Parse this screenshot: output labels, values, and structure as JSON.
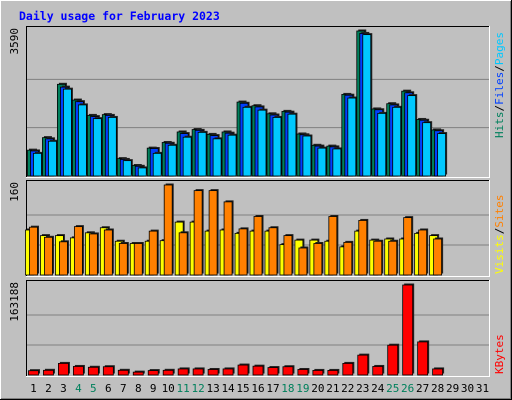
{
  "chart_data": {
    "type": "bar",
    "title": "Daily usage for February 2023",
    "colors": {
      "background": "#c0c0c0",
      "panel": "#c0c0c0",
      "title": "#0000ff",
      "hits": "#00805c",
      "files": "#0040ff",
      "pages": "#00c8ff",
      "visits": "#ffff00",
      "sites": "#ff8000",
      "kbytes": "#ff0000",
      "weekend_label": "#00805c",
      "weekday_label": "#000000",
      "gridline": "#808080"
    },
    "x_ticks": [
      "1",
      "2",
      "3",
      "4",
      "5",
      "6",
      "7",
      "8",
      "9",
      "10",
      "11",
      "12",
      "13",
      "14",
      "15",
      "16",
      "17",
      "18",
      "19",
      "20",
      "21",
      "22",
      "23",
      "24",
      "25",
      "26",
      "27",
      "28",
      "29",
      "30",
      "31"
    ],
    "weekend_days": [
      4,
      5,
      11,
      12,
      18,
      19,
      25,
      26
    ],
    "panels": [
      {
        "id": "hits-files-pages",
        "y_tick_label": "3590",
        "ymax": 3590,
        "legend": [
          "Hits",
          "/",
          "Files",
          "/",
          "Pages"
        ],
        "series": [
          {
            "name": "Hits",
            "values": [
              640,
              950,
              2270,
              1880,
              1500,
              1520,
              430,
              260,
              690,
              830,
              1090,
              1150,
              1030,
              1090,
              1830,
              1740,
              1540,
              1600,
              1040,
              760,
              740,
              2020,
              3590,
              1660,
              1790,
              2100,
              1400,
              1140,
              0,
              0,
              0
            ]
          },
          {
            "name": "Files",
            "values": [
              620,
              920,
              2200,
              1840,
              1470,
              1500,
              410,
              240,
              680,
              810,
              1050,
              1130,
              1000,
              1060,
              1800,
              1710,
              1510,
              1580,
              1020,
              740,
              720,
              2000,
              3530,
              1640,
              1760,
              2060,
              1380,
              1120,
              0,
              0,
              0
            ]
          },
          {
            "name": "Pages",
            "values": [
              560,
              860,
              2150,
              1760,
              1420,
              1450,
              380,
              200,
              560,
              760,
              960,
              1080,
              920,
              1010,
              1700,
              1630,
              1450,
              1530,
              990,
              690,
              670,
              1930,
              3500,
              1550,
              1700,
              1990,
              1320,
              1050,
              0,
              0,
              0
            ]
          }
        ]
      },
      {
        "id": "visits-sites",
        "y_tick_label": "160",
        "ymax": 160,
        "legend": [
          "Visits",
          "/",
          "Sites"
        ],
        "series": [
          {
            "name": "Visits",
            "values": [
              80,
              70,
              70,
              66,
              75,
              84,
              60,
              56,
              60,
              61,
              94,
              94,
              78,
              80,
              74,
              78,
              78,
              54,
              62,
              62,
              60,
              50,
              78,
              62,
              64,
              64,
              74,
              70,
              0,
              0,
              0
            ]
          },
          {
            "name": "Sites",
            "values": [
              85,
              67,
              59,
              86,
              73,
              80,
              56,
              56,
              78,
              160,
              75,
              150,
              150,
              130,
              82,
              104,
              84,
              70,
              48,
              56,
              104,
              58,
              97,
              60,
              60,
              102,
              80,
              64,
              0,
              0,
              0
            ]
          }
        ]
      },
      {
        "id": "kbytes",
        "y_tick_label": "163188",
        "ymax": 163188,
        "legend": [
          "KBytes"
        ],
        "series": [
          {
            "name": "KBytes",
            "values": [
              7800,
              8500,
              21000,
              15500,
              14000,
              15000,
              8500,
              5200,
              8000,
              8500,
              11000,
              11000,
              10000,
              11000,
              18000,
              16000,
              13500,
              15000,
              10000,
              8300,
              8300,
              21000,
              36000,
              15500,
              54000,
              163188,
              60000,
              11000,
              0,
              0,
              0
            ]
          }
        ]
      }
    ]
  }
}
